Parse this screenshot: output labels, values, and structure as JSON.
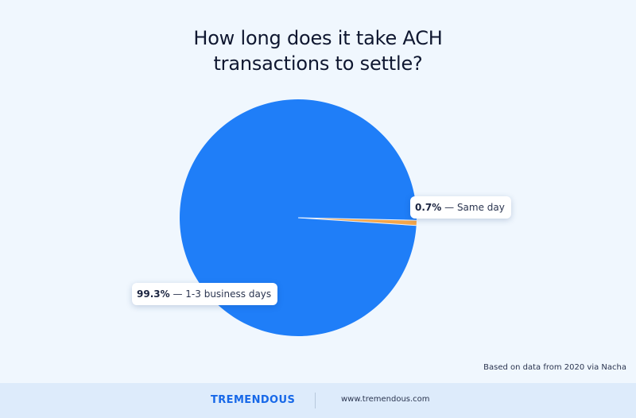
{
  "chart_data": {
    "type": "pie",
    "title_lines": [
      "How long does it take ACH",
      "transactions to settle?"
    ],
    "slices": [
      {
        "value_label": "99.3%",
        "label": "1-3 business days",
        "value": 99.3,
        "color": "#1f7ef8"
      },
      {
        "value_label": "0.7%",
        "label": "Same day",
        "value": 0.7,
        "color": "#f4a64a"
      }
    ],
    "legend": "none"
  },
  "source_note": "Based on data from 2020 via Nacha",
  "footer": {
    "brand": "TREMENDOUS",
    "url": "www.tremendous.com"
  },
  "colors": {
    "background": "#f0f7fe",
    "footer_background": "#ddebfb",
    "brand": "#1768e8"
  }
}
